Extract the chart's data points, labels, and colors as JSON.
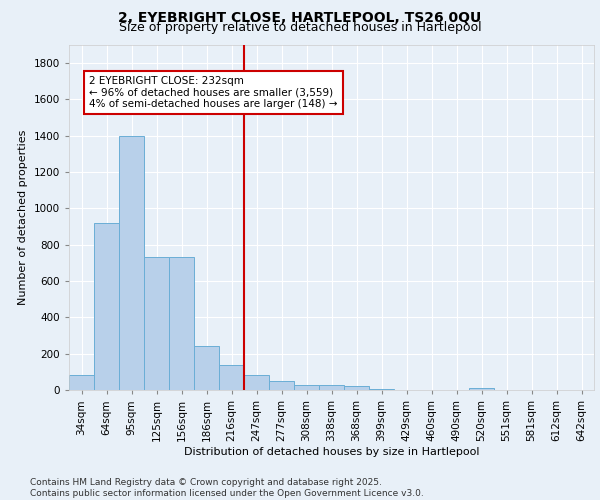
{
  "title": "2, EYEBRIGHT CLOSE, HARTLEPOOL, TS26 0QU",
  "subtitle": "Size of property relative to detached houses in Hartlepool",
  "xlabel": "Distribution of detached houses by size in Hartlepool",
  "ylabel": "Number of detached properties",
  "categories": [
    "34sqm",
    "64sqm",
    "95sqm",
    "125sqm",
    "156sqm",
    "186sqm",
    "216sqm",
    "247sqm",
    "277sqm",
    "308sqm",
    "338sqm",
    "368sqm",
    "399sqm",
    "429sqm",
    "460sqm",
    "490sqm",
    "520sqm",
    "551sqm",
    "581sqm",
    "612sqm",
    "642sqm"
  ],
  "values": [
    80,
    920,
    1400,
    730,
    730,
    245,
    140,
    80,
    50,
    30,
    30,
    20,
    5,
    0,
    0,
    0,
    10,
    0,
    0,
    0,
    0
  ],
  "bar_color": "#b8d0ea",
  "bar_edge_color": "#6aaed6",
  "vline_pos": 6.5,
  "vline_color": "#cc0000",
  "annotation_text": "2 EYEBRIGHT CLOSE: 232sqm\n← 96% of detached houses are smaller (3,559)\n4% of semi-detached houses are larger (148) →",
  "annotation_box_color": "#ffffff",
  "annotation_box_edge": "#cc0000",
  "ylim": [
    0,
    1900
  ],
  "yticks": [
    0,
    200,
    400,
    600,
    800,
    1000,
    1200,
    1400,
    1600,
    1800
  ],
  "footnote": "Contains HM Land Registry data © Crown copyright and database right 2025.\nContains public sector information licensed under the Open Government Licence v3.0.",
  "bg_color": "#e8f0f8",
  "grid_color": "#ffffff",
  "title_fontsize": 10,
  "subtitle_fontsize": 9,
  "axis_label_fontsize": 8,
  "tick_fontsize": 7.5,
  "annotation_fontsize": 7.5,
  "footnote_fontsize": 6.5
}
